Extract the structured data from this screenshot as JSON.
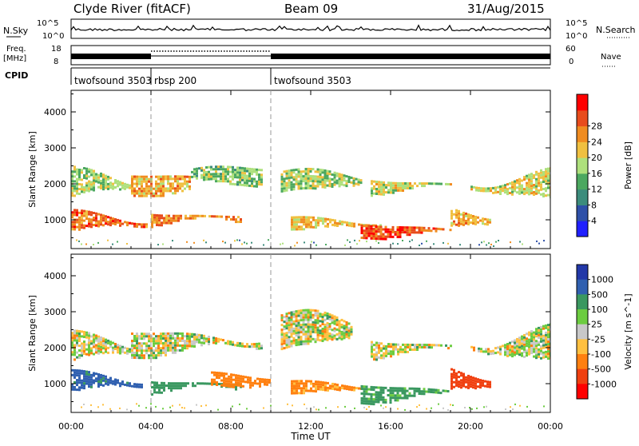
{
  "header": {
    "station": "Clyde River (fitACF)",
    "beam": "Beam 09",
    "date": "31/Aug/2015"
  },
  "top_panels": {
    "nsky_label": "N.Sky",
    "nsky_ticks": [
      "10^5",
      "10^0"
    ],
    "nsearch_label": "N.Search",
    "freq_label": "Freq.",
    "freq_unit": "[MHz]",
    "freq_ticks": [
      "18",
      "8"
    ],
    "nave_ticks": [
      "60",
      "0"
    ],
    "nave_label": "Nave",
    "cpid_label": "CPID",
    "cpid_segments": [
      {
        "label": "twofsound 3503",
        "start_hour": 0
      },
      {
        "label": "rbsp 200",
        "start_hour": 4
      },
      {
        "label": "twofsound 3503",
        "start_hour": 10
      }
    ]
  },
  "colors": {
    "power": [
      "#2020ff",
      "#2e50a8",
      "#3c8c7c",
      "#4ca860",
      "#aee07c",
      "#f0c040",
      "#f08c20",
      "#e84c1c",
      "#ff0000"
    ],
    "velocity": [
      "#2238a8",
      "#3060b0",
      "#3a9860",
      "#6ccc40",
      "#c8c8c8",
      "#c8c8c8",
      "#ffc040",
      "#ff8010",
      "#f04010",
      "#ff0000"
    ]
  },
  "chart_data": [
    {
      "type": "heatmap",
      "name": "power",
      "ylabel": "Slant Range [km]",
      "yticks": [
        "1000",
        "2000",
        "3000",
        "4000"
      ],
      "xticks": [
        "00:00",
        "04:00",
        "08:00",
        "12:00",
        "16:00",
        "20:00",
        "00:00"
      ],
      "ylim": [
        200,
        4600
      ],
      "xlim": [
        0,
        24
      ],
      "colorbar_label": "Power [dB]",
      "colorbar_ticks": [
        "4",
        "8",
        "12",
        "16",
        "20",
        "24",
        "28"
      ],
      "colorbar_range": [
        0,
        32
      ],
      "echo_bands": [
        {
          "t0": 0.0,
          "t1": 3.8,
          "r0": 600,
          "r1": 1300,
          "level": 28
        },
        {
          "t0": 0.0,
          "t1": 3.0,
          "r0": 1500,
          "r1": 2500,
          "level": 18
        },
        {
          "t0": 3.0,
          "t1": 6.0,
          "r0": 1700,
          "r1": 2300,
          "level": 24
        },
        {
          "t0": 4.0,
          "t1": 8.5,
          "r0": 800,
          "r1": 1300,
          "level": 26
        },
        {
          "t0": 6.0,
          "t1": 9.5,
          "r0": 2000,
          "r1": 2500,
          "level": 16
        },
        {
          "t0": 10.5,
          "t1": 14.5,
          "r0": 1800,
          "r1": 2400,
          "level": 18
        },
        {
          "t0": 11.0,
          "t1": 15.5,
          "r0": 700,
          "r1": 1100,
          "level": 22
        },
        {
          "t0": 14.5,
          "t1": 19.0,
          "r0": 500,
          "r1": 900,
          "level": 30
        },
        {
          "t0": 15.0,
          "t1": 19.0,
          "r0": 1700,
          "r1": 2200,
          "level": 20
        },
        {
          "t0": 19.0,
          "t1": 21.0,
          "r0": 700,
          "r1": 1400,
          "level": 24
        },
        {
          "t0": 20.0,
          "t1": 24.0,
          "r0": 1500,
          "r1": 2400,
          "level": 20
        }
      ]
    },
    {
      "type": "heatmap",
      "name": "velocity",
      "ylabel": "Slant Range [km]",
      "yticks": [
        "1000",
        "2000",
        "3000",
        "4000"
      ],
      "xticks": [
        "00:00",
        "04:00",
        "08:00",
        "12:00",
        "16:00",
        "20:00",
        "00:00"
      ],
      "xlabel": "Time UT",
      "ylim": [
        200,
        4600
      ],
      "xlim": [
        0,
        24
      ],
      "colorbar_label": "Velocity [m s^-1]",
      "colorbar_ticks": [
        "1000",
        "500",
        "100",
        "25",
        "-25",
        "-100",
        "-500",
        "-1000"
      ],
      "echo_bands": [
        {
          "t0": 0.0,
          "t1": 3.5,
          "r0": 700,
          "r1": 1400,
          "level": 600
        },
        {
          "t0": 0.0,
          "t1": 3.0,
          "r0": 1500,
          "r1": 2500,
          "level": 0
        },
        {
          "t0": 3.0,
          "t1": 9.5,
          "r0": 1800,
          "r1": 2500,
          "level": 0
        },
        {
          "t0": 4.0,
          "t1": 8.5,
          "r0": 700,
          "r1": 1200,
          "level": 250
        },
        {
          "t0": 7.0,
          "t1": 10.0,
          "r0": 900,
          "r1": 1300,
          "level": -300
        },
        {
          "t0": 10.5,
          "t1": 14.0,
          "r0": 2000,
          "r1": 3000,
          "level": 0
        },
        {
          "t0": 11.0,
          "t1": 14.5,
          "r0": 700,
          "r1": 1100,
          "level": -150
        },
        {
          "t0": 14.5,
          "t1": 19.0,
          "r0": 500,
          "r1": 1000,
          "level": 200
        },
        {
          "t0": 15.0,
          "t1": 19.0,
          "r0": 1700,
          "r1": 2300,
          "level": 0
        },
        {
          "t0": 19.0,
          "t1": 21.0,
          "r0": 700,
          "r1": 1500,
          "level": -800
        },
        {
          "t0": 20.0,
          "t1": 24.0,
          "r0": 1500,
          "r1": 2600,
          "level": 0
        }
      ]
    }
  ]
}
